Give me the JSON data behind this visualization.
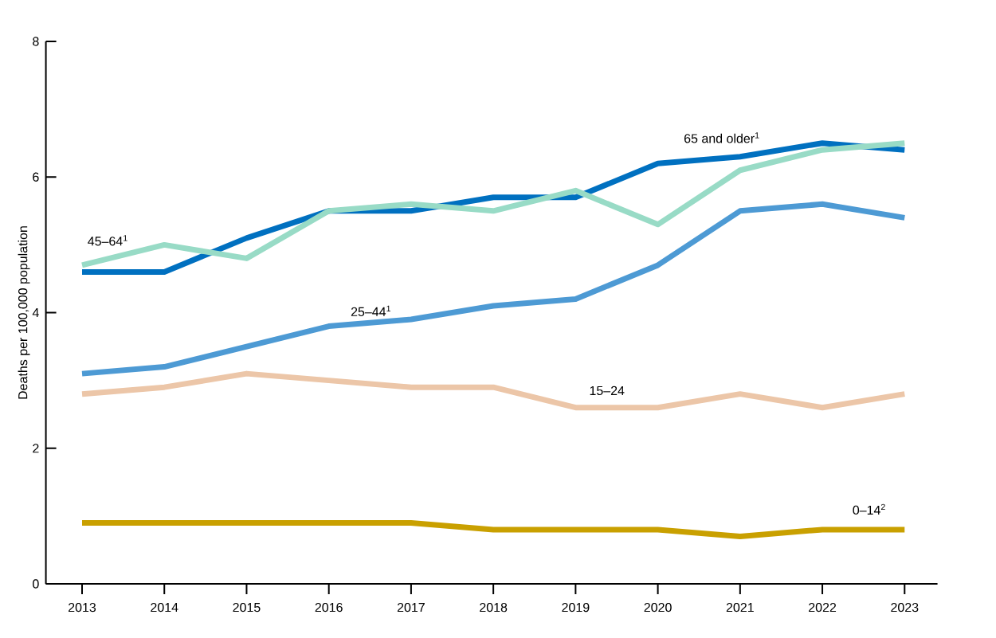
{
  "chart_data": {
    "type": "line",
    "ylabel": "Deaths per 100,000 population",
    "categories": [
      "2013",
      "2014",
      "2015",
      "2016",
      "2017",
      "2018",
      "2019",
      "2020",
      "2021",
      "2022",
      "2023"
    ],
    "ylim": [
      0,
      8
    ],
    "yticks": [
      0,
      2,
      4,
      6,
      8
    ],
    "series": [
      {
        "name": "65 and older$^{1}$",
        "color": "#0070c0",
        "values": [
          4.6,
          4.6,
          5.1,
          5.5,
          5.5,
          5.7,
          5.7,
          6.2,
          6.3,
          6.5,
          6.4
        ]
      },
      {
        "name": "45–64$^{1}$",
        "color": "#98dbc6",
        "values": [
          4.7,
          5.0,
          4.8,
          5.5,
          5.6,
          5.5,
          5.8,
          5.3,
          6.1,
          6.4,
          6.5
        ]
      },
      {
        "name": "25–44$^{1}$",
        "color": "#4d9ad4",
        "values": [
          3.1,
          3.2,
          3.5,
          3.8,
          3.9,
          4.1,
          4.2,
          4.7,
          5.5,
          5.6,
          5.4
        ]
      },
      {
        "name": "15–24",
        "color": "#ecc6a8",
        "values": [
          2.8,
          2.9,
          3.1,
          3.0,
          2.9,
          2.9,
          2.6,
          2.6,
          2.8,
          2.6,
          2.8
        ]
      },
      {
        "name": "0–14$^{2}$",
        "color": "#c9a000",
        "values": [
          0.9,
          0.9,
          0.9,
          0.9,
          0.9,
          0.8,
          0.8,
          0.8,
          0.7,
          0.8,
          0.8
        ]
      }
    ]
  }
}
